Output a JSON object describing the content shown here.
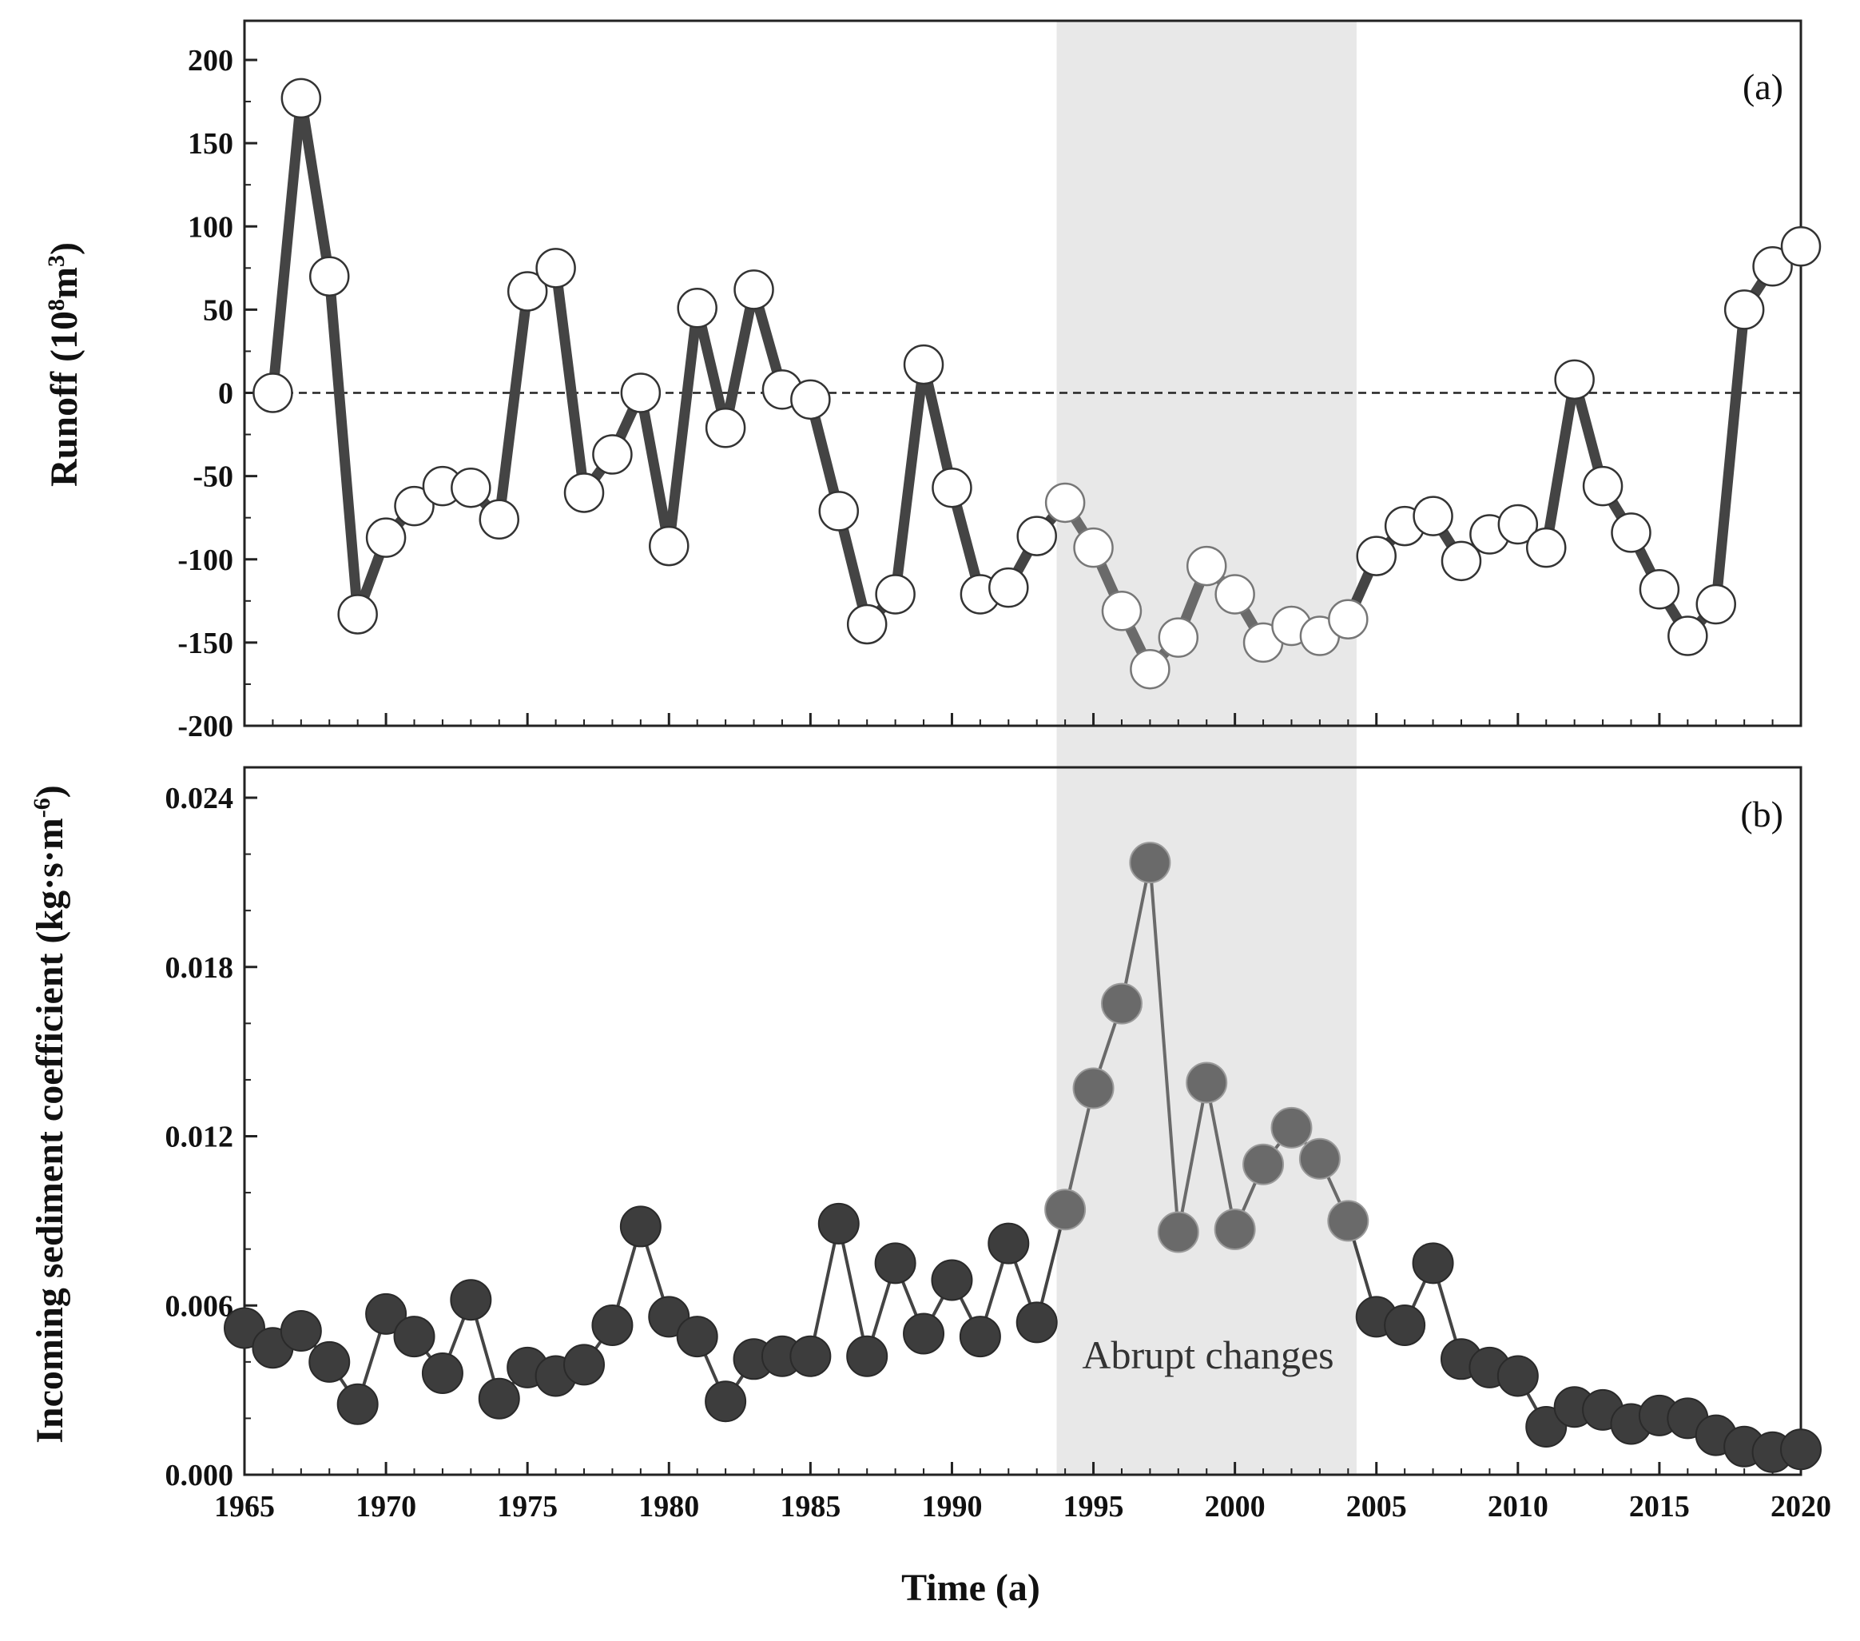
{
  "chart_data": [
    {
      "panel": "(a)",
      "type": "line",
      "ylabel": "Runoff (10",
      "ylabel_sup": "8",
      "ylabel_mid": "m",
      "ylabel_sup2": "3",
      "ylabel_end": ")",
      "ylim": [
        -200,
        200
      ],
      "yticks": [
        "200",
        "150",
        "100",
        "50",
        "0",
        "-50",
        "-100",
        "-150",
        "-200"
      ],
      "zero_line": true,
      "x": [
        1966,
        1967,
        1968,
        1969,
        1970,
        1971,
        1972,
        1973,
        1974,
        1975,
        1976,
        1977,
        1978,
        1979,
        1980,
        1981,
        1982,
        1983,
        1984,
        1985,
        1986,
        1987,
        1988,
        1989,
        1990,
        1991,
        1992,
        1993,
        1994,
        1995,
        1996,
        1997,
        1998,
        1999,
        2000,
        2001,
        2002,
        2003,
        2004,
        2005,
        2006,
        2007,
        2008,
        2009,
        2010,
        2011,
        2012,
        2013,
        2014,
        2015,
        2016,
        2017,
        2018,
        2019,
        2020
      ],
      "values": [
        0,
        177,
        70,
        -133,
        -87,
        -68,
        -56,
        -57,
        -76,
        61,
        75,
        -60,
        -37,
        0,
        -92,
        51,
        -21,
        62,
        2,
        -4,
        -71,
        -139,
        -121,
        17,
        -57,
        -121,
        -117,
        -86,
        -66,
        -93,
        -131,
        -166,
        -147,
        -104,
        -121,
        -150,
        -140,
        -146,
        -136,
        -98,
        -80,
        -74,
        -101,
        -85,
        -79,
        -93,
        8,
        -56,
        -84,
        -118,
        -146,
        -127,
        50,
        76,
        88
      ]
    },
    {
      "panel": "(b)",
      "type": "scatter",
      "ylabel": "Incoming sediment coefficient (kg·s·m",
      "ylabel_sup": "-6",
      "ylabel_end": ")",
      "ylim": [
        0.0,
        0.024
      ],
      "yticks": [
        "0.024",
        "0.018",
        "0.012",
        "0.006",
        "0.000"
      ],
      "x": [
        1965,
        1966,
        1967,
        1968,
        1969,
        1970,
        1971,
        1972,
        1973,
        1974,
        1975,
        1976,
        1977,
        1978,
        1979,
        1980,
        1981,
        1982,
        1983,
        1984,
        1985,
        1986,
        1987,
        1988,
        1989,
        1990,
        1991,
        1992,
        1993,
        1994,
        1995,
        1996,
        1997,
        1998,
        1999,
        2000,
        2001,
        2002,
        2003,
        2004,
        2005,
        2006,
        2007,
        2008,
        2009,
        2010,
        2011,
        2012,
        2013,
        2014,
        2015,
        2016,
        2017,
        2018,
        2019,
        2020
      ],
      "values": [
        0.0052,
        0.0045,
        0.0051,
        0.004,
        0.0025,
        0.0057,
        0.0049,
        0.0036,
        0.0062,
        0.0027,
        0.0038,
        0.0035,
        0.0039,
        0.0053,
        0.0088,
        0.0056,
        0.0049,
        0.0026,
        0.0041,
        0.0042,
        0.0042,
        0.0089,
        0.0042,
        0.0075,
        0.005,
        0.0069,
        0.0049,
        0.0082,
        0.0054,
        0.0094,
        0.0137,
        0.0167,
        0.0217,
        0.0086,
        0.0139,
        0.0087,
        0.011,
        0.0123,
        0.0112,
        0.009,
        0.0056,
        0.0053,
        0.0075,
        0.0041,
        0.0038,
        0.0035,
        0.0017,
        0.0024,
        0.0023,
        0.0018,
        0.0021,
        0.002,
        0.0014,
        0.001,
        0.0008,
        0.0009
      ],
      "annotation": "Abrupt changes"
    }
  ],
  "shared_x": {
    "xlabel": "Time (a)",
    "xlim": [
      1965,
      2020
    ],
    "xticks": [
      "1965",
      "1970",
      "1975",
      "1980",
      "1985",
      "1990",
      "1995",
      "2000",
      "2005",
      "2010",
      "2015",
      "2020"
    ],
    "shaded_range": [
      1993.7,
      2004.3
    ]
  },
  "colors": {
    "line": "#444444",
    "marker_dark": "#3d3d3d",
    "marker_shaded": "#6a6a6a",
    "shade": "#e8e8e8"
  }
}
